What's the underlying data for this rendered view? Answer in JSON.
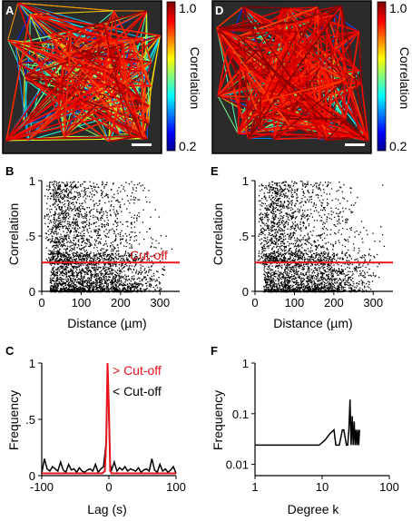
{
  "panel_labels": {
    "A": "A",
    "B": "B",
    "C": "C",
    "D": "D",
    "E": "E",
    "F": "F"
  },
  "colorbar": {
    "label": "Correlation",
    "max_label": "1.0",
    "min_label": "0.2",
    "range": [
      0.2,
      1.0
    ]
  },
  "colors": {
    "red": "#e8141c",
    "black": "#000000",
    "background_dark": "#2b2b2b"
  },
  "chart_data": [
    {
      "panel": "A",
      "type": "network",
      "colorbar": {
        "label": "Correlation",
        "ticks": [
          "1.0",
          "0.2"
        ]
      }
    },
    {
      "panel": "D",
      "type": "network",
      "colorbar": {
        "label": "Correlation",
        "ticks": [
          "1.0",
          "0.2"
        ]
      }
    },
    {
      "panel": "B",
      "type": "scatter",
      "xlabel": "Distance (µm)",
      "ylabel": "Correlation",
      "xlim": [
        0,
        350
      ],
      "ylim": [
        0,
        1
      ],
      "xticks": [
        "0",
        "100",
        "200",
        "300"
      ],
      "yticks": [
        "0",
        ".5",
        "1"
      ],
      "cutoff": {
        "value": 0.26,
        "label": "Cut-off"
      },
      "point_density": "approx. 5000 points; dense at low correlation near 150–250 µm, sparse above 0.5"
    },
    {
      "panel": "E",
      "type": "scatter",
      "xlabel": "Distance (µm)",
      "ylabel": "Correlation",
      "xlim": [
        0,
        350
      ],
      "ylim": [
        0,
        1
      ],
      "xticks": [
        "0",
        "100",
        "200",
        "300"
      ],
      "yticks": [
        "0",
        ".5",
        "1"
      ],
      "cutoff": {
        "value": 0.26
      }
    },
    {
      "panel": "C",
      "type": "line",
      "xlabel": "Lag (s)",
      "ylabel": "Frequency",
      "xlim": [
        -100,
        100
      ],
      "ylim": [
        0,
        1
      ],
      "xticks": [
        "-100",
        "0",
        "100"
      ],
      "yticks": [
        "0",
        ".5",
        "1"
      ],
      "legend": [
        {
          "name": "> Cut-off",
          "color": "#e8141c"
        },
        {
          "name": "< Cut-off",
          "color": "#000000"
        }
      ],
      "series": [
        {
          "name": "> Cut-off",
          "x": [
            -100,
            -80,
            -60,
            -40,
            -20,
            -10,
            -6,
            -4,
            -2,
            0,
            2,
            4,
            8,
            20,
            40,
            60,
            80,
            100
          ],
          "y": [
            0.02,
            0.02,
            0.02,
            0.02,
            0.02,
            0.02,
            0.04,
            0.3,
            1.0,
            0.6,
            0.04,
            0.02,
            0.02,
            0.02,
            0.02,
            0.02,
            0.02,
            0.02
          ]
        },
        {
          "name": "< Cut-off",
          "x": [
            -100,
            -96,
            -92,
            -88,
            -84,
            -80,
            -76,
            -72,
            -68,
            -64,
            -60,
            -56,
            -52,
            -48,
            -44,
            -40,
            -36,
            -32,
            -28,
            -24,
            -20,
            -16,
            -12,
            -8,
            -4,
            -2,
            0,
            2,
            4,
            8,
            12,
            16,
            20,
            24,
            28,
            32,
            36,
            40,
            44,
            48,
            52,
            56,
            60,
            64,
            68,
            72,
            76,
            80,
            84,
            88,
            92,
            96,
            100
          ],
          "y": [
            0.02,
            0.15,
            0.06,
            0.04,
            0.08,
            0.06,
            0.04,
            0.12,
            0.05,
            0.03,
            0.1,
            0.05,
            0.06,
            0.03,
            0.07,
            0.04,
            0.03,
            0.05,
            0.06,
            0.04,
            0.1,
            0.03,
            0.06,
            0.08,
            0.3,
            0.95,
            0.5,
            0.1,
            0.05,
            0.12,
            0.04,
            0.07,
            0.05,
            0.08,
            0.04,
            0.06,
            0.05,
            0.04,
            0.07,
            0.03,
            0.05,
            0.06,
            0.04,
            0.15,
            0.05,
            0.03,
            0.1,
            0.04,
            0.06,
            0.03,
            0.05,
            0.08,
            0.02
          ]
        }
      ]
    },
    {
      "panel": "F",
      "type": "line",
      "xlabel": "Degree k",
      "ylabel": "Frequency",
      "xscale": "log",
      "yscale": "log",
      "xlim": [
        1,
        100
      ],
      "ylim": [
        0.006,
        1
      ],
      "xticks": [
        "1",
        "10",
        "100"
      ],
      "yticks": [
        "0.01",
        "0.1",
        "1"
      ],
      "series": [
        {
          "name": "",
          "x": [
            1,
            9,
            11,
            13,
            15,
            16,
            18,
            20,
            21,
            23,
            24,
            25,
            26,
            27,
            28,
            29,
            30,
            31,
            32,
            33,
            34,
            35,
            36
          ],
          "y": [
            0.024,
            0.024,
            0.03,
            0.04,
            0.048,
            0.024,
            0.024,
            0.048,
            0.048,
            0.024,
            0.024,
            0.048,
            0.19,
            0.024,
            0.09,
            0.024,
            0.07,
            0.024,
            0.048,
            0.024,
            0.048,
            0.024,
            0.048
          ]
        }
      ]
    }
  ]
}
